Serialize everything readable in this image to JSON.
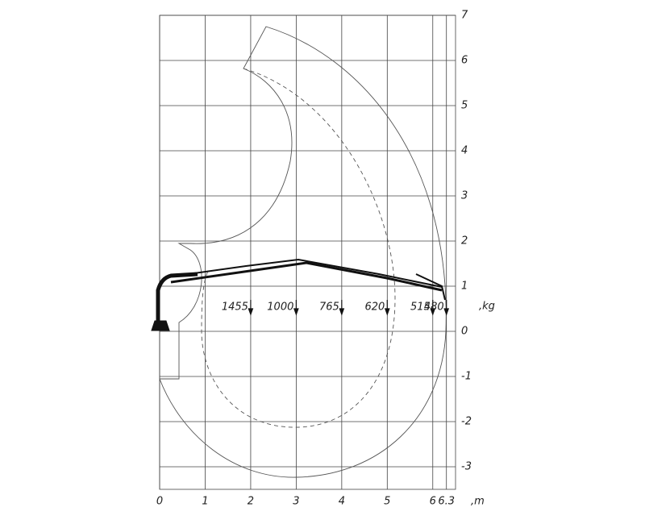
{
  "chart_data": {
    "type": "load-chart",
    "x_unit": ",m",
    "y_unit": ",kg",
    "xlim": [
      0,
      6.5
    ],
    "ylim": [
      -3.5,
      7
    ],
    "xticks": [
      0,
      1,
      2,
      3,
      4,
      5,
      6,
      6.3
    ],
    "yticks": [
      -3,
      -2,
      -1,
      0,
      1,
      2,
      3,
      4,
      5,
      6,
      7
    ],
    "loads": {
      "x": [
        2,
        3,
        4,
        5,
        6,
        6.3
      ],
      "values": [
        1455,
        1000,
        765,
        620,
        515,
        480
      ]
    }
  }
}
